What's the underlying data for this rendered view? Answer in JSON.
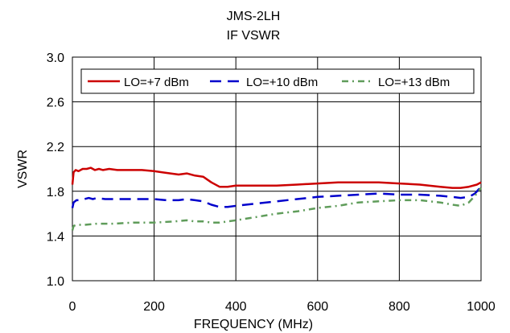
{
  "chart_data": {
    "type": "line",
    "title": "JMS-2LH",
    "subtitle": "IF VSWR",
    "xlabel": "FREQUENCY (MHz)",
    "ylabel": "VSWR",
    "xlim": [
      0,
      1000
    ],
    "ylim": [
      1.0,
      3.0
    ],
    "xticks": [
      "0",
      "200",
      "400",
      "600",
      "800",
      "1000"
    ],
    "yticks": [
      "1.0",
      "1.4",
      "1.8",
      "2.2",
      "2.6",
      "3.0"
    ],
    "grid": true,
    "legend_position": "top",
    "series": [
      {
        "name": "LO=+7 dBm",
        "color": "#cc0000",
        "dash": "solid",
        "points": [
          [
            0,
            1.86
          ],
          [
            3,
            1.97
          ],
          [
            8,
            1.99
          ],
          [
            15,
            1.98
          ],
          [
            25,
            2.0
          ],
          [
            35,
            2.0
          ],
          [
            45,
            2.01
          ],
          [
            55,
            1.99
          ],
          [
            65,
            2.0
          ],
          [
            75,
            1.99
          ],
          [
            90,
            2.0
          ],
          [
            110,
            1.99
          ],
          [
            140,
            1.99
          ],
          [
            170,
            1.99
          ],
          [
            200,
            1.98
          ],
          [
            220,
            1.97
          ],
          [
            240,
            1.96
          ],
          [
            260,
            1.95
          ],
          [
            280,
            1.96
          ],
          [
            300,
            1.94
          ],
          [
            320,
            1.93
          ],
          [
            340,
            1.88
          ],
          [
            360,
            1.84
          ],
          [
            380,
            1.84
          ],
          [
            400,
            1.85
          ],
          [
            450,
            1.85
          ],
          [
            500,
            1.85
          ],
          [
            550,
            1.86
          ],
          [
            600,
            1.87
          ],
          [
            650,
            1.88
          ],
          [
            700,
            1.88
          ],
          [
            750,
            1.88
          ],
          [
            800,
            1.87
          ],
          [
            850,
            1.86
          ],
          [
            900,
            1.84
          ],
          [
            930,
            1.83
          ],
          [
            950,
            1.83
          ],
          [
            970,
            1.84
          ],
          [
            990,
            1.86
          ],
          [
            1000,
            1.88
          ]
        ]
      },
      {
        "name": "LO=+10 dBm",
        "color": "#0000cc",
        "dash": "long",
        "points": [
          [
            0,
            1.65
          ],
          [
            3,
            1.7
          ],
          [
            10,
            1.72
          ],
          [
            20,
            1.72
          ],
          [
            30,
            1.73
          ],
          [
            40,
            1.74
          ],
          [
            50,
            1.73
          ],
          [
            60,
            1.74
          ],
          [
            80,
            1.73
          ],
          [
            100,
            1.73
          ],
          [
            150,
            1.73
          ],
          [
            200,
            1.73
          ],
          [
            230,
            1.72
          ],
          [
            260,
            1.72
          ],
          [
            280,
            1.73
          ],
          [
            300,
            1.72
          ],
          [
            320,
            1.71
          ],
          [
            340,
            1.68
          ],
          [
            360,
            1.66
          ],
          [
            380,
            1.66
          ],
          [
            400,
            1.67
          ],
          [
            450,
            1.69
          ],
          [
            500,
            1.71
          ],
          [
            550,
            1.73
          ],
          [
            600,
            1.75
          ],
          [
            650,
            1.76
          ],
          [
            700,
            1.77
          ],
          [
            750,
            1.78
          ],
          [
            800,
            1.77
          ],
          [
            850,
            1.77
          ],
          [
            900,
            1.76
          ],
          [
            930,
            1.75
          ],
          [
            950,
            1.74
          ],
          [
            970,
            1.75
          ],
          [
            985,
            1.78
          ],
          [
            1000,
            1.84
          ]
        ]
      },
      {
        "name": "LO=+13 dBm",
        "color": "#5f9c5a",
        "dash": "dashdot",
        "points": [
          [
            0,
            1.45
          ],
          [
            3,
            1.49
          ],
          [
            10,
            1.5
          ],
          [
            30,
            1.5
          ],
          [
            60,
            1.51
          ],
          [
            100,
            1.51
          ],
          [
            150,
            1.52
          ],
          [
            200,
            1.52
          ],
          [
            250,
            1.53
          ],
          [
            280,
            1.54
          ],
          [
            300,
            1.53
          ],
          [
            320,
            1.53
          ],
          [
            340,
            1.52
          ],
          [
            360,
            1.52
          ],
          [
            400,
            1.54
          ],
          [
            450,
            1.57
          ],
          [
            500,
            1.6
          ],
          [
            550,
            1.62
          ],
          [
            600,
            1.65
          ],
          [
            650,
            1.67
          ],
          [
            700,
            1.7
          ],
          [
            750,
            1.71
          ],
          [
            800,
            1.72
          ],
          [
            850,
            1.72
          ],
          [
            900,
            1.7
          ],
          [
            930,
            1.68
          ],
          [
            950,
            1.67
          ],
          [
            970,
            1.7
          ],
          [
            985,
            1.76
          ],
          [
            1000,
            1.83
          ]
        ]
      }
    ]
  }
}
